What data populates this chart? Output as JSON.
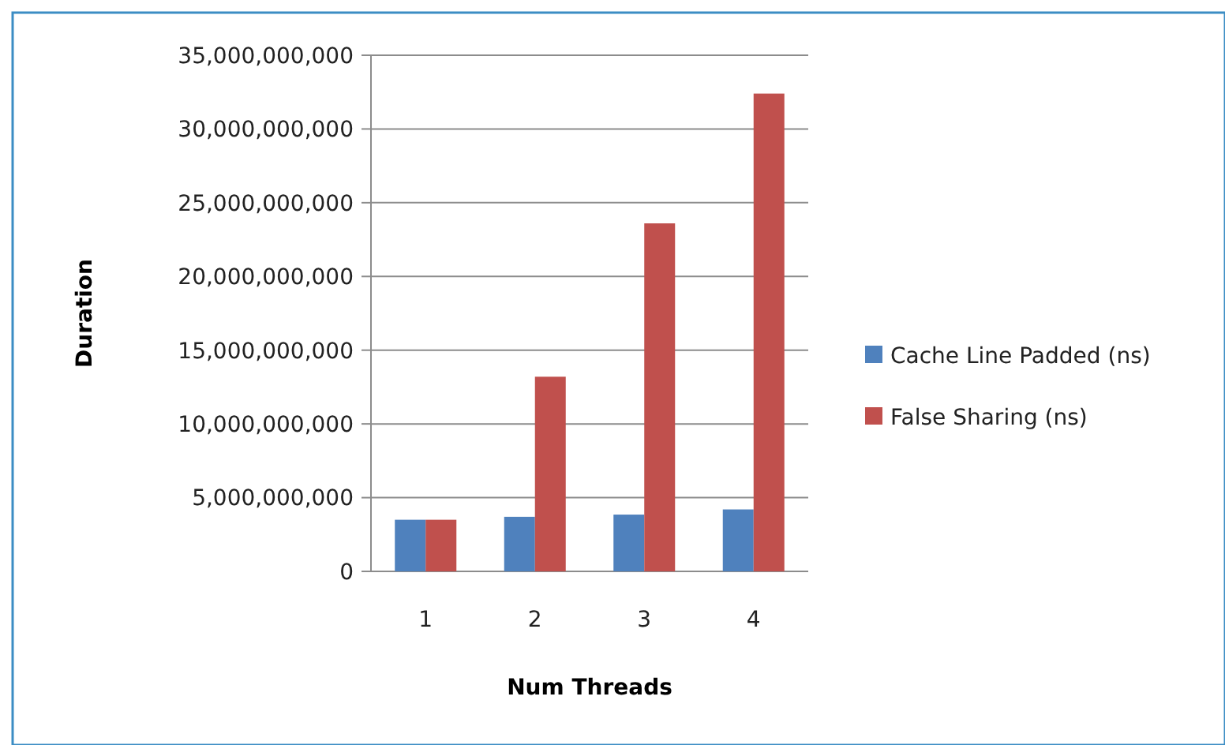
{
  "chart_data": {
    "type": "bar",
    "xlabel": "Num Threads",
    "ylabel": "Duration",
    "categories": [
      "1",
      "2",
      "3",
      "4"
    ],
    "series": [
      {
        "name": "Cache Line Padded (ns)",
        "color": "#4f81bd",
        "values": [
          3500000000,
          3700000000,
          3850000000,
          4200000000
        ]
      },
      {
        "name": "False Sharing (ns)",
        "color": "#c0504d",
        "values": [
          3500000000,
          13200000000,
          23600000000,
          32400000000
        ]
      }
    ],
    "ylim": [
      0,
      35000000000
    ],
    "yticks": [
      {
        "value": 0,
        "label": "0"
      },
      {
        "value": 5000000000,
        "label": "5,000,000,000"
      },
      {
        "value": 10000000000,
        "label": "10,000,000,000"
      },
      {
        "value": 15000000000,
        "label": "15,000,000,000"
      },
      {
        "value": 20000000000,
        "label": "20,000,000,000"
      },
      {
        "value": 25000000000,
        "label": "25,000,000,000"
      },
      {
        "value": 30000000000,
        "label": "30,000,000,000"
      },
      {
        "value": 35000000000,
        "label": "35,000,000,000"
      }
    ],
    "grid": "y",
    "legend": "right"
  }
}
